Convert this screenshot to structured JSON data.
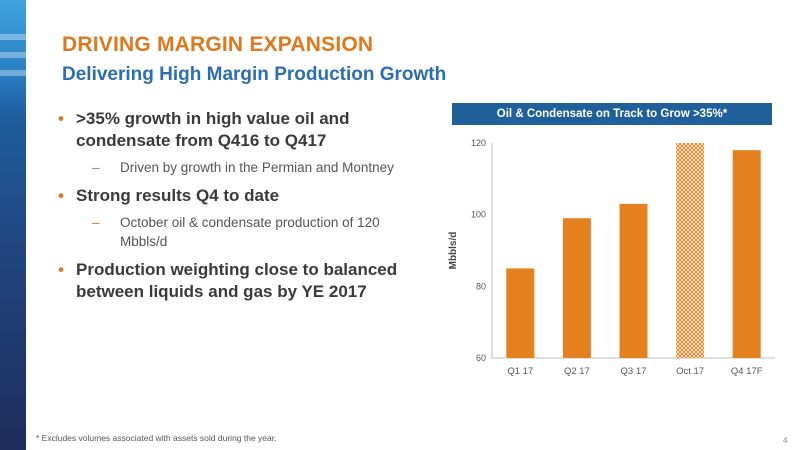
{
  "slide": {
    "title": "DRIVING MARGIN EXPANSION",
    "subtitle": "Delivering High Margin Production Growth",
    "page_number": "4",
    "footnote": "* Excludes volumes associated with assets sold during the year.",
    "bullets": [
      {
        "text": ">35% growth in high value oil and condensate from Q416 to Q417",
        "sub": "Driven by growth in the Permian and Montney"
      },
      {
        "text": "Strong results Q4 to date",
        "sub": "October oil & condensate production of 120 Mbbls/d"
      },
      {
        "text": "Production weighting close to balanced between liquids and gas by YE 2017",
        "sub": null
      }
    ]
  },
  "colors": {
    "accent_orange": "#e0781b",
    "subtitle_blue": "#2c6fb0",
    "chart_header_blue": "#1f5f9a",
    "bar_orange": "#e5801f"
  },
  "chart_data": {
    "type": "bar",
    "title": "Oil & Condensate on Track to Grow >35%*",
    "ylabel": "Mbbls/d",
    "xlabel": "",
    "categories": [
      "Q1 17",
      "Q2 17",
      "Q3 17",
      "Oct 17",
      "Q4 17F"
    ],
    "values": [
      85,
      99,
      103,
      120,
      118
    ],
    "ylim": [
      60,
      120
    ],
    "yticks": [
      "60",
      "80",
      "100",
      "120"
    ],
    "hatched_category": "Oct 17",
    "grid": false
  }
}
